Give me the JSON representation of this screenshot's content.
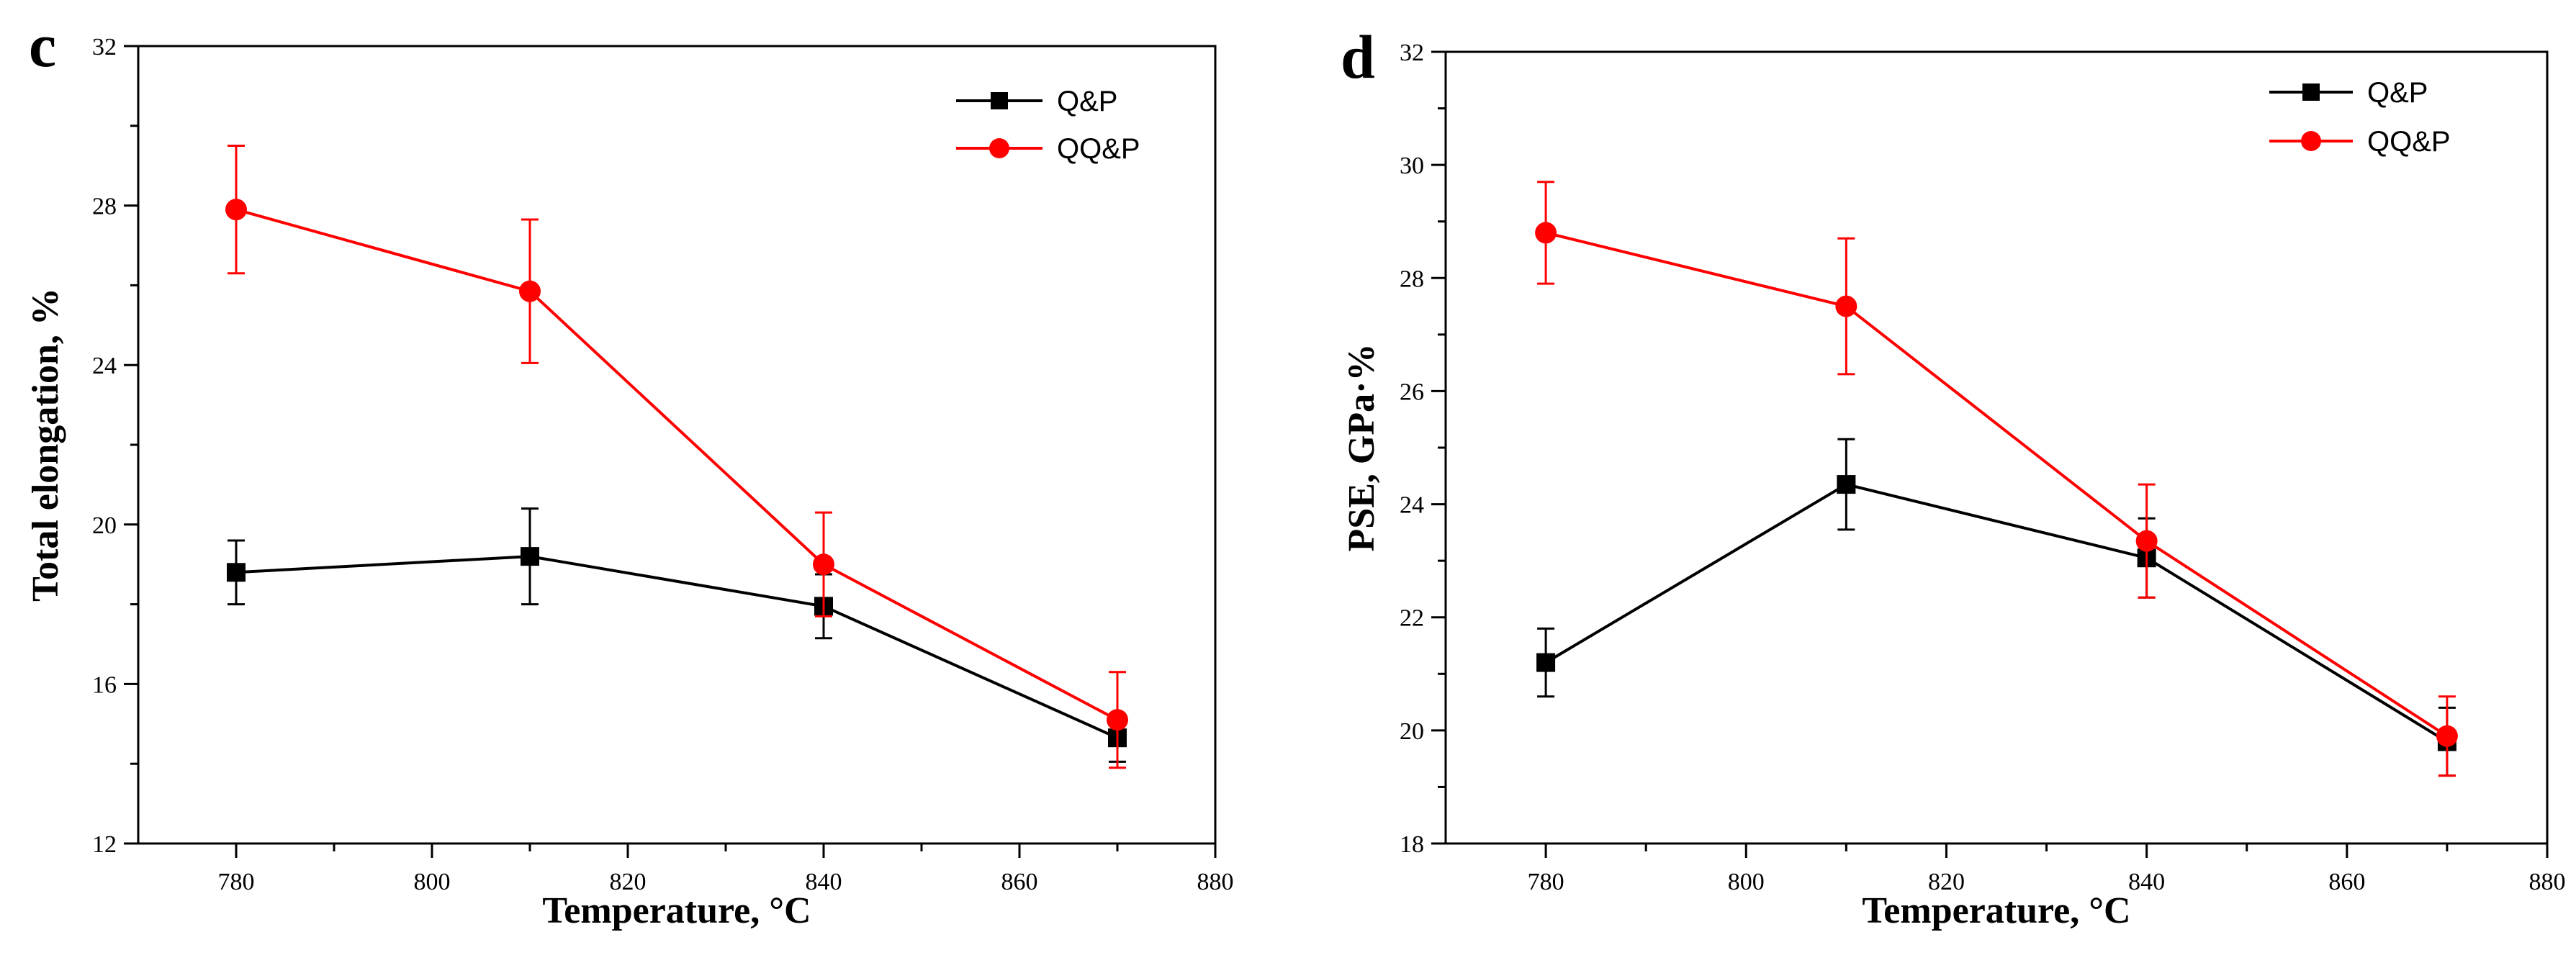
{
  "colors": {
    "Q&P": "#000000",
    "QQ&P": "#ff0000"
  },
  "chart_data": [
    {
      "type": "line",
      "panel_label": "c",
      "title": "",
      "xlabel": "Temperature, °C",
      "ylabel": "Total elongation, %",
      "xlim": [
        770,
        880
      ],
      "ylim": [
        12,
        32
      ],
      "xticks": [
        780,
        800,
        820,
        840,
        860,
        880
      ],
      "yticks": [
        12,
        16,
        20,
        24,
        28,
        32
      ],
      "grid": false,
      "legend_position": "top-right",
      "x": [
        780,
        810,
        840,
        870
      ],
      "series": [
        {
          "name": "Q&P",
          "marker": "square",
          "values": [
            18.8,
            19.2,
            17.95,
            14.65
          ],
          "errors": [
            0.8,
            1.2,
            0.8,
            0.6
          ]
        },
        {
          "name": "QQ&P",
          "marker": "circle",
          "values": [
            27.9,
            25.85,
            19.0,
            15.1
          ],
          "errors": [
            1.6,
            1.8,
            1.3,
            1.2
          ]
        }
      ]
    },
    {
      "type": "line",
      "panel_label": "d",
      "title": "",
      "xlabel": "Temperature, °C",
      "ylabel": "PSE, GPa·%",
      "xlim": [
        770,
        880
      ],
      "ylim": [
        18,
        32
      ],
      "xticks": [
        780,
        800,
        820,
        840,
        860,
        880
      ],
      "yticks": [
        18,
        20,
        22,
        24,
        26,
        28,
        30,
        32
      ],
      "grid": false,
      "legend_position": "top-right",
      "x": [
        780,
        810,
        840,
        870
      ],
      "series": [
        {
          "name": "Q&P",
          "marker": "square",
          "values": [
            21.2,
            24.35,
            23.05,
            19.8
          ],
          "errors": [
            0.6,
            0.8,
            0.7,
            0.6
          ]
        },
        {
          "name": "QQ&P",
          "marker": "circle",
          "values": [
            28.8,
            27.5,
            23.35,
            19.9
          ],
          "errors": [
            0.9,
            1.2,
            1.0,
            0.7
          ]
        }
      ]
    }
  ]
}
